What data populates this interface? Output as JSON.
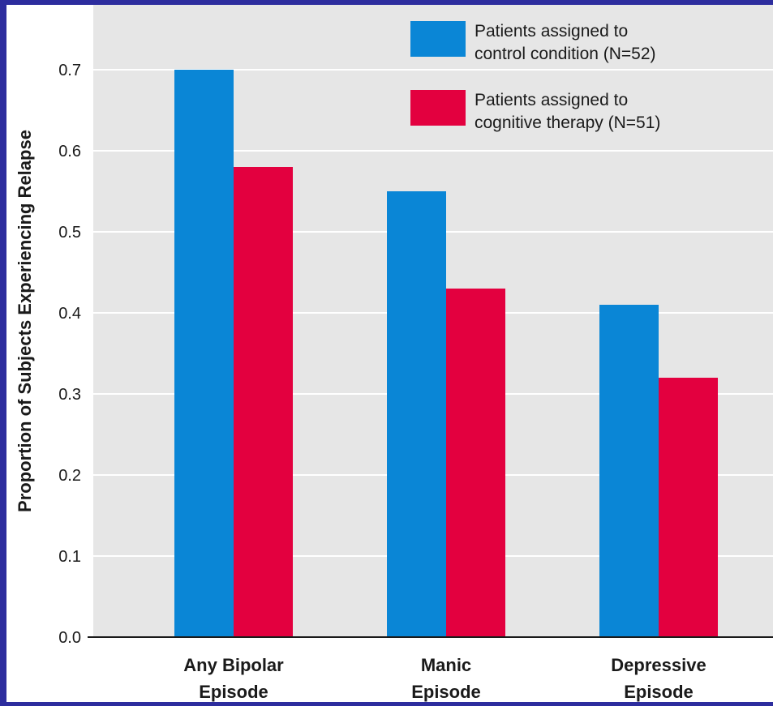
{
  "chart_data": {
    "type": "bar",
    "title": "",
    "xlabel": "",
    "ylabel": "Proportion of Subjects Experiencing Relapse",
    "ylim": [
      0,
      0.7
    ],
    "yticks": [
      "0.0",
      "0.1",
      "0.2",
      "0.3",
      "0.4",
      "0.5",
      "0.6",
      "0.7"
    ],
    "grid": true,
    "legend_position": "top-right",
    "categories": [
      [
        "Any Bipolar",
        "Episode"
      ],
      [
        "Manic",
        "Episode"
      ],
      [
        "Depressive",
        "Episode"
      ]
    ],
    "series": [
      {
        "legend": [
          "Patients assigned to",
          "control condition (N=52)"
        ],
        "color": "#0a86d6",
        "values": [
          0.7,
          0.55,
          0.41
        ]
      },
      {
        "legend": [
          "Patients assigned to",
          "cognitive therapy (N=51)"
        ],
        "color": "#e3003f",
        "values": [
          0.58,
          0.43,
          0.32
        ]
      }
    ],
    "colors": {
      "plot_background": "#e6e6e6",
      "gridline": "#ffffff",
      "frame": "#2d2d9e"
    }
  }
}
